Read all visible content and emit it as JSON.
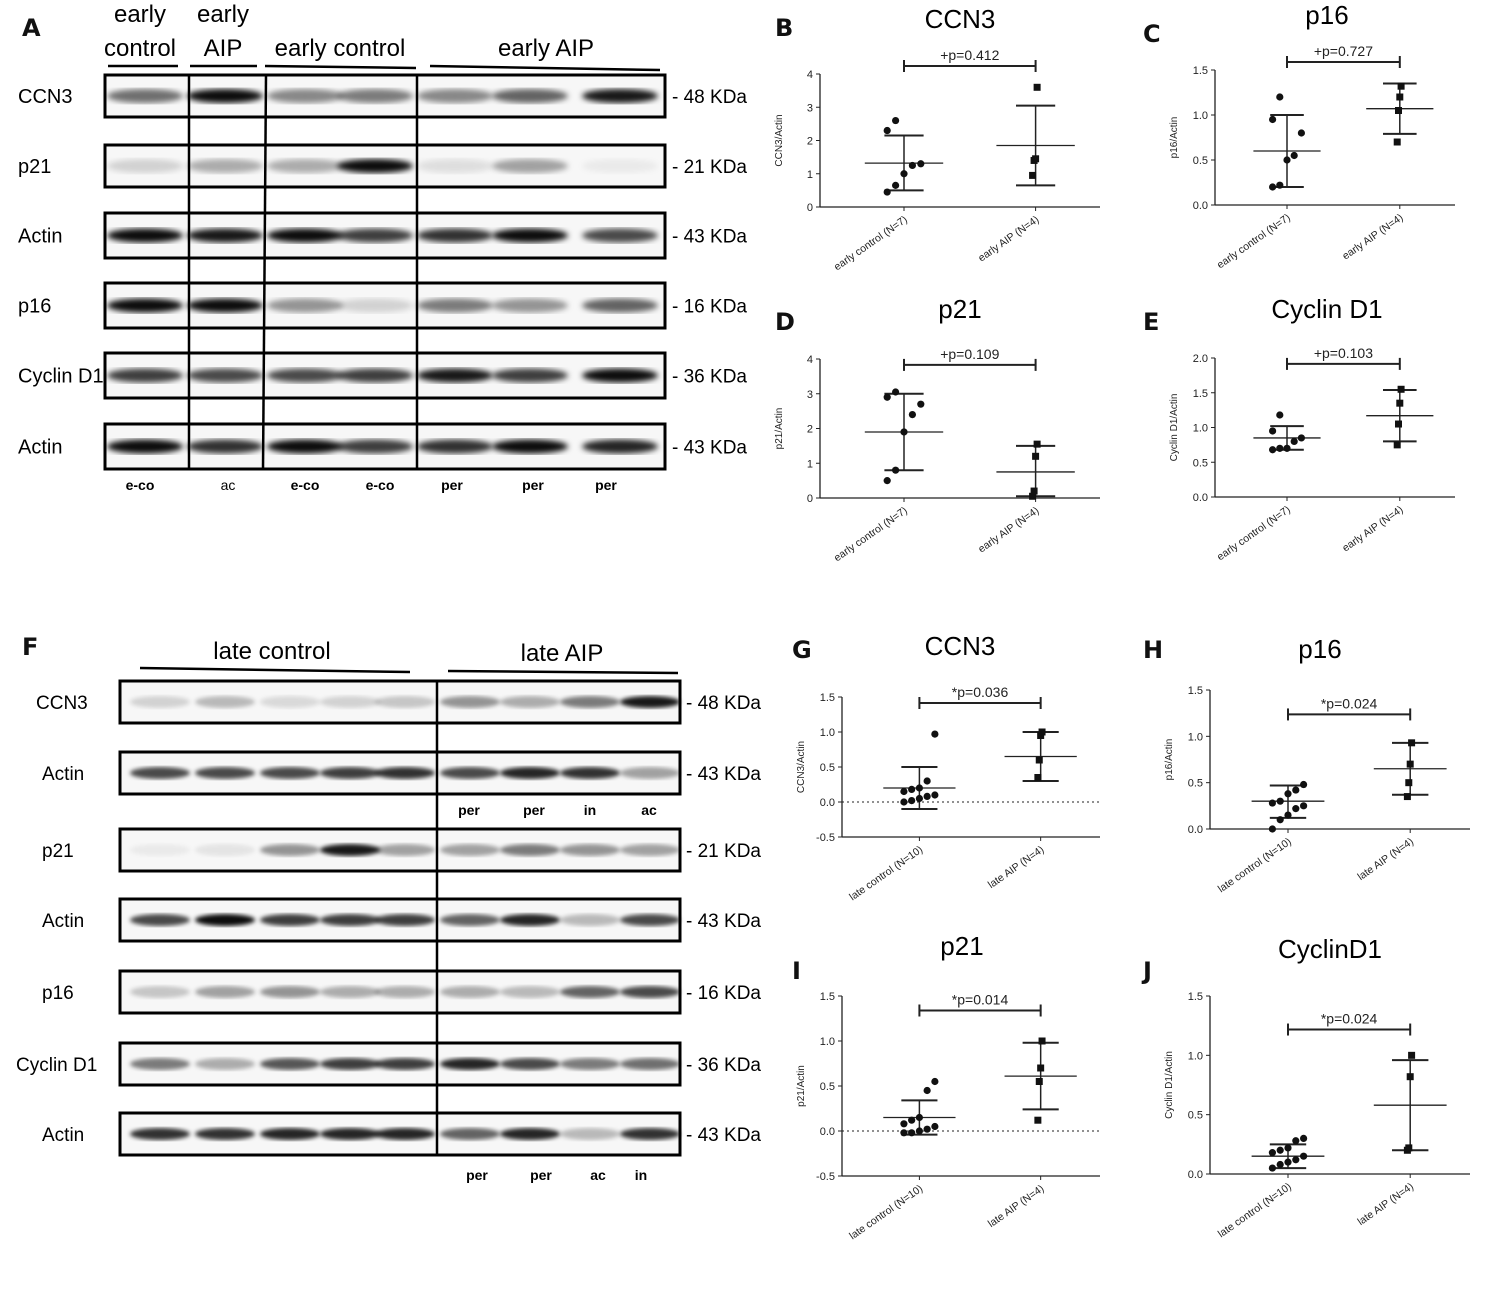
{
  "panel_letters": {
    "A": "A",
    "B": "B",
    "C": "C",
    "D": "D",
    "E": "E",
    "F": "F",
    "G": "G",
    "H": "H",
    "I": "I",
    "J": "J"
  },
  "blot_top": {
    "group_headers": [
      "early\ncontrol",
      "early\nAIP",
      "early control",
      "early AIP"
    ],
    "rows": [
      {
        "name": "CCN3",
        "marker": "48 KDa"
      },
      {
        "name": "p21",
        "marker": "21 KDa"
      },
      {
        "name": "Actin",
        "marker": "43 KDa"
      },
      {
        "name": "p16",
        "marker": "16 KDa"
      },
      {
        "name": "Cyclin D1",
        "marker": "36 KDa"
      },
      {
        "name": "Actin",
        "marker": "43 KDa"
      }
    ],
    "lane_labels": [
      "e-co",
      "ac",
      "e-co",
      "e-co",
      "per",
      "per",
      "per"
    ]
  },
  "blot_bottom": {
    "group_headers": [
      "late control",
      "late AIP"
    ],
    "rows": [
      {
        "name": "CCN3",
        "marker": "48 KDa"
      },
      {
        "name": "Actin",
        "marker": "43 KDa"
      },
      {
        "name": "p21",
        "marker": "21 KDa"
      },
      {
        "name": "Actin",
        "marker": "43 KDa"
      },
      {
        "name": "p16",
        "marker": "16 KDa"
      },
      {
        "name": "Cyclin D1",
        "marker": "36 KDa"
      },
      {
        "name": "Actin",
        "marker": "43 KDa"
      }
    ],
    "lane_labels_mid": [
      "per",
      "per",
      "in",
      "ac"
    ],
    "lane_labels_bottom": [
      "per",
      "per",
      "ac",
      "in"
    ]
  },
  "chart_data": [
    {
      "panel": "B",
      "type": "scatter",
      "title": "CCN3",
      "ylabel": "CCN3/Actin",
      "ylim": [
        0,
        4
      ],
      "yticks": [
        0,
        1,
        2,
        3,
        4
      ],
      "categories": [
        "early control (N=7)",
        "early AIP (N=4)"
      ],
      "groups": [
        {
          "points": [
            0.45,
            0.65,
            1.0,
            1.25,
            1.3,
            2.3,
            2.6
          ],
          "mean": 1.32,
          "sd_low": 0.5,
          "sd_high": 2.15,
          "marker": "circle"
        },
        {
          "points": [
            0.95,
            1.4,
            1.45,
            3.6
          ],
          "mean": 1.85,
          "sd_low": 0.65,
          "sd_high": 3.05,
          "marker": "square"
        }
      ],
      "p_label": "+p=0.412",
      "p_y": 4.0
    },
    {
      "panel": "C",
      "type": "scatter",
      "title": "p16",
      "ylabel": "p16/Actin",
      "ylim": [
        0,
        1.5
      ],
      "yticks": [
        0.0,
        0.5,
        1.0,
        1.5
      ],
      "categories": [
        "early control (N=7)",
        "early AIP (N=4)"
      ],
      "groups": [
        {
          "points": [
            0.2,
            0.22,
            0.5,
            0.55,
            0.8,
            0.95,
            1.2
          ],
          "mean": 0.6,
          "sd_low": 0.2,
          "sd_high": 1.0,
          "marker": "circle"
        },
        {
          "points": [
            0.7,
            1.05,
            1.2,
            1.32
          ],
          "mean": 1.07,
          "sd_low": 0.79,
          "sd_high": 1.35,
          "marker": "square"
        }
      ],
      "p_label": "+p=0.727",
      "p_y": 1.5
    },
    {
      "panel": "D",
      "type": "scatter",
      "title": "p21",
      "ylabel": "p21/Actin",
      "ylim": [
        0,
        4
      ],
      "yticks": [
        0,
        1,
        2,
        3,
        4
      ],
      "categories": [
        "early control (N=7)",
        "early AIP (N=4)"
      ],
      "groups": [
        {
          "points": [
            0.5,
            0.8,
            1.9,
            2.4,
            2.7,
            2.9,
            3.05
          ],
          "mean": 1.9,
          "sd_low": 0.8,
          "sd_high": 3.0,
          "marker": "circle"
        },
        {
          "points": [
            0.05,
            0.2,
            1.2,
            1.55
          ],
          "mean": 0.75,
          "sd_low": 0.05,
          "sd_high": 1.5,
          "marker": "square"
        }
      ],
      "p_label": "+p=0.109",
      "p_y": 3.6
    },
    {
      "panel": "E",
      "type": "scatter",
      "title": "Cyclin D1",
      "ylabel": "Cyclin D1/Actin",
      "ylim": [
        0,
        2.0
      ],
      "yticks": [
        0.0,
        0.5,
        1.0,
        1.5,
        2.0
      ],
      "categories": [
        "early control (N=7)",
        "early AIP (N=4)"
      ],
      "groups": [
        {
          "points": [
            0.68,
            0.7,
            0.7,
            0.8,
            0.85,
            0.95,
            1.18
          ],
          "mean": 0.85,
          "sd_low": 0.68,
          "sd_high": 1.02,
          "marker": "circle"
        },
        {
          "points": [
            0.75,
            1.05,
            1.35,
            1.55
          ],
          "mean": 1.17,
          "sd_low": 0.8,
          "sd_high": 1.54,
          "marker": "square"
        }
      ],
      "p_label": "+p=0.103",
      "p_y": 1.8
    },
    {
      "panel": "G",
      "type": "scatter",
      "title": "CCN3",
      "ylabel": "CCN3/Actin",
      "ylim": [
        -0.5,
        1.5
      ],
      "yticks": [
        -0.5,
        0.0,
        0.5,
        1.0,
        1.5
      ],
      "zero_line": true,
      "categories": [
        "late control (N=10)",
        "late AIP (N=4)"
      ],
      "groups": [
        {
          "points": [
            0.0,
            0.02,
            0.05,
            0.08,
            0.1,
            0.15,
            0.18,
            0.2,
            0.3,
            0.97
          ],
          "mean": 0.2,
          "sd_low": -0.1,
          "sd_high": 0.5,
          "marker": "circle"
        },
        {
          "points": [
            0.35,
            0.6,
            0.95,
            1.0
          ],
          "mean": 0.65,
          "sd_low": 0.3,
          "sd_high": 1.0,
          "marker": "square"
        }
      ],
      "p_label": "*p=0.036",
      "p_y": 1.3
    },
    {
      "panel": "H",
      "type": "scatter",
      "title": "p16",
      "ylabel": "p16/Actin",
      "ylim": [
        0,
        1.5
      ],
      "yticks": [
        0.0,
        0.5,
        1.0,
        1.5
      ],
      "categories": [
        "late control (N=10)",
        "late AIP (N=4)"
      ],
      "groups": [
        {
          "points": [
            0.0,
            0.1,
            0.15,
            0.22,
            0.25,
            0.28,
            0.3,
            0.38,
            0.42,
            0.48
          ],
          "mean": 0.3,
          "sd_low": 0.12,
          "sd_high": 0.47,
          "marker": "circle"
        },
        {
          "points": [
            0.35,
            0.5,
            0.7,
            0.93
          ],
          "mean": 0.65,
          "sd_low": 0.37,
          "sd_high": 0.93,
          "marker": "square"
        }
      ],
      "p_label": "*p=0.024",
      "p_y": 1.15
    },
    {
      "panel": "I",
      "type": "scatter",
      "title": "p21",
      "ylabel": "p21/Actin",
      "ylim": [
        -0.5,
        1.5
      ],
      "yticks": [
        -0.5,
        0.0,
        0.5,
        1.0,
        1.5
      ],
      "zero_line": true,
      "categories": [
        "late control (N=10)",
        "late AIP (N=4)"
      ],
      "groups": [
        {
          "points": [
            -0.02,
            -0.02,
            0.0,
            0.02,
            0.05,
            0.08,
            0.12,
            0.15,
            0.45,
            0.55
          ],
          "mean": 0.15,
          "sd_low": -0.04,
          "sd_high": 0.34,
          "marker": "circle"
        },
        {
          "points": [
            0.12,
            0.55,
            0.7,
            1.0
          ],
          "mean": 0.61,
          "sd_low": 0.24,
          "sd_high": 0.98,
          "marker": "square"
        }
      ],
      "p_label": "*p=0.014",
      "p_y": 1.25
    },
    {
      "panel": "J",
      "type": "scatter",
      "title": "CyclinD1",
      "ylabel": "Cyclin D1/Actin",
      "ylim": [
        0,
        1.5
      ],
      "yticks": [
        0.0,
        0.5,
        1.0,
        1.5
      ],
      "categories": [
        "late control (N=10)",
        "late AIP (N=4)"
      ],
      "groups": [
        {
          "points": [
            0.05,
            0.08,
            0.1,
            0.12,
            0.15,
            0.18,
            0.2,
            0.22,
            0.28,
            0.3
          ],
          "mean": 0.15,
          "sd_low": 0.05,
          "sd_high": 0.25,
          "marker": "circle"
        },
        {
          "points": [
            0.2,
            0.22,
            0.82,
            1.0
          ],
          "mean": 0.58,
          "sd_low": 0.2,
          "sd_high": 0.96,
          "marker": "square"
        }
      ],
      "p_label": "*p=0.024",
      "p_y": 1.15
    }
  ]
}
